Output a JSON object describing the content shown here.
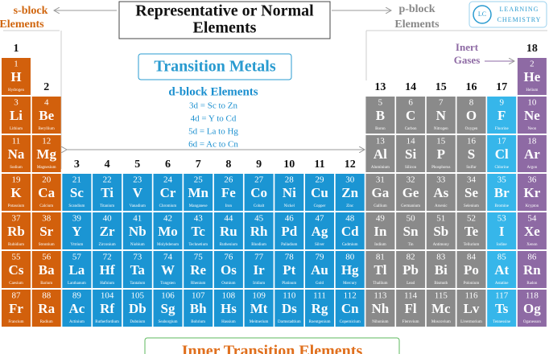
{
  "header": {
    "title_line1": "Representative or Normal",
    "title_line2": "Elements",
    "s_block_line1": "s-block",
    "s_block_line2": "Elements",
    "p_block_line1": "p-block",
    "p_block_line2": "Elements",
    "logo_mark": "LC",
    "logo_line1": "Learning",
    "logo_line2": "Chemistry"
  },
  "transition": {
    "title": "Transition Metals",
    "subtitle": "d-block Elements",
    "series": [
      "3d = Sc to Zn",
      "4d = Y to Cd",
      "5d = La to Hg",
      "6d = Ac to Cn"
    ]
  },
  "inert": {
    "line1": "Inert",
    "line2": "Gases"
  },
  "footer": {
    "title": "Inner Transition Elements"
  },
  "groups": [
    1,
    2,
    3,
    4,
    5,
    6,
    7,
    8,
    9,
    10,
    11,
    12,
    13,
    14,
    15,
    16,
    17,
    18
  ],
  "elements": [
    {
      "number": 1,
      "symbol": "H",
      "name": "Hydrogen"
    },
    {
      "number": 2,
      "symbol": "He",
      "name": "Helium"
    },
    {
      "number": 3,
      "symbol": "Li",
      "name": "Lithium"
    },
    {
      "number": 4,
      "symbol": "Be",
      "name": "Beryllium"
    },
    {
      "number": 5,
      "symbol": "B",
      "name": "Boron"
    },
    {
      "number": 6,
      "symbol": "C",
      "name": "Carbon"
    },
    {
      "number": 7,
      "symbol": "N",
      "name": "Nitrogen"
    },
    {
      "number": 8,
      "symbol": "O",
      "name": "Oxygen"
    },
    {
      "number": 9,
      "symbol": "F",
      "name": "Fluorine"
    },
    {
      "number": 10,
      "symbol": "Ne",
      "name": "Neon"
    },
    {
      "number": 11,
      "symbol": "Na",
      "name": "Sodium"
    },
    {
      "number": 12,
      "symbol": "Mg",
      "name": "Magnesium"
    },
    {
      "number": 13,
      "symbol": "Al",
      "name": "Aluminium"
    },
    {
      "number": 14,
      "symbol": "Si",
      "name": "Silicon"
    },
    {
      "number": 15,
      "symbol": "P",
      "name": "Phosphorus"
    },
    {
      "number": 16,
      "symbol": "S",
      "name": "Sulfur"
    },
    {
      "number": 17,
      "symbol": "Cl",
      "name": "Chlorine"
    },
    {
      "number": 18,
      "symbol": "Ar",
      "name": "Argon"
    },
    {
      "number": 19,
      "symbol": "K",
      "name": "Potassium"
    },
    {
      "number": 20,
      "symbol": "Ca",
      "name": "Calcium"
    },
    {
      "number": 21,
      "symbol": "Sc",
      "name": "Scandium"
    },
    {
      "number": 22,
      "symbol": "Ti",
      "name": "Titanium"
    },
    {
      "number": 23,
      "symbol": "V",
      "name": "Vanadium"
    },
    {
      "number": 24,
      "symbol": "Cr",
      "name": "Chromium"
    },
    {
      "number": 25,
      "symbol": "Mn",
      "name": "Manganese"
    },
    {
      "number": 26,
      "symbol": "Fe",
      "name": "Iron"
    },
    {
      "number": 27,
      "symbol": "Co",
      "name": "Cobalt"
    },
    {
      "number": 28,
      "symbol": "Ni",
      "name": "Nickel"
    },
    {
      "number": 29,
      "symbol": "Cu",
      "name": "Copper"
    },
    {
      "number": 30,
      "symbol": "Zn",
      "name": "Zinc"
    },
    {
      "number": 31,
      "symbol": "Ga",
      "name": "Gallium"
    },
    {
      "number": 32,
      "symbol": "Ge",
      "name": "Germanium"
    },
    {
      "number": 33,
      "symbol": "As",
      "name": "Arsenic"
    },
    {
      "number": 34,
      "symbol": "Se",
      "name": "Selenium"
    },
    {
      "number": 35,
      "symbol": "Br",
      "name": "Bromine"
    },
    {
      "number": 36,
      "symbol": "Kr",
      "name": "Krypton"
    },
    {
      "number": 37,
      "symbol": "Rb",
      "name": "Rubidium"
    },
    {
      "number": 38,
      "symbol": "Sr",
      "name": "Strontium"
    },
    {
      "number": 39,
      "symbol": "Y",
      "name": "Yttrium"
    },
    {
      "number": 40,
      "symbol": "Zr",
      "name": "Zirconium"
    },
    {
      "number": 41,
      "symbol": "Nb",
      "name": "Niobium"
    },
    {
      "number": 42,
      "symbol": "Mo",
      "name": "Molybdenum"
    },
    {
      "number": 43,
      "symbol": "Tc",
      "name": "Technetium"
    },
    {
      "number": 44,
      "symbol": "Ru",
      "name": "Ruthenium"
    },
    {
      "number": 45,
      "symbol": "Rh",
      "name": "Rhodium"
    },
    {
      "number": 46,
      "symbol": "Pd",
      "name": "Palladium"
    },
    {
      "number": 47,
      "symbol": "Ag",
      "name": "Silver"
    },
    {
      "number": 48,
      "symbol": "Cd",
      "name": "Cadmium"
    },
    {
      "number": 49,
      "symbol": "In",
      "name": "Indium"
    },
    {
      "number": 50,
      "symbol": "Sn",
      "name": "Tin"
    },
    {
      "number": 51,
      "symbol": "Sb",
      "name": "Antimony"
    },
    {
      "number": 52,
      "symbol": "Te",
      "name": "Tellurium"
    },
    {
      "number": 53,
      "symbol": "I",
      "name": "Iodine"
    },
    {
      "number": 54,
      "symbol": "Xe",
      "name": "Xenon"
    },
    {
      "number": 55,
      "symbol": "Cs",
      "name": "Caesium"
    },
    {
      "number": 56,
      "symbol": "Ba",
      "name": "Barium"
    },
    {
      "number": 57,
      "symbol": "La",
      "name": "Lanthanum"
    },
    {
      "number": 72,
      "symbol": "Hf",
      "name": "Hafnium"
    },
    {
      "number": 73,
      "symbol": "Ta",
      "name": "Tantalum"
    },
    {
      "number": 74,
      "symbol": "W",
      "name": "Tungsten"
    },
    {
      "number": 75,
      "symbol": "Re",
      "name": "Rhenium"
    },
    {
      "number": 76,
      "symbol": "Os",
      "name": "Osmium"
    },
    {
      "number": 77,
      "symbol": "Ir",
      "name": "Iridium"
    },
    {
      "number": 78,
      "symbol": "Pt",
      "name": "Platinum"
    },
    {
      "number": 79,
      "symbol": "Au",
      "name": "Gold"
    },
    {
      "number": 80,
      "symbol": "Hg",
      "name": "Mercury"
    },
    {
      "number": 81,
      "symbol": "Tl",
      "name": "Thallium"
    },
    {
      "number": 82,
      "symbol": "Pb",
      "name": "Lead"
    },
    {
      "number": 83,
      "symbol": "Bi",
      "name": "Bismuth"
    },
    {
      "number": 84,
      "symbol": "Po",
      "name": "Polonium"
    },
    {
      "number": 85,
      "symbol": "At",
      "name": "Astatine"
    },
    {
      "number": 86,
      "symbol": "Rn",
      "name": "Radon"
    },
    {
      "number": 87,
      "symbol": "Fr",
      "name": "Francium"
    },
    {
      "number": 88,
      "symbol": "Ra",
      "name": "Radium"
    },
    {
      "number": 89,
      "symbol": "Ac",
      "name": "Actinium"
    },
    {
      "number": 104,
      "symbol": "Rf",
      "name": "Rutherfordium"
    },
    {
      "number": 105,
      "symbol": "Db",
      "name": "Dubnium"
    },
    {
      "number": 106,
      "symbol": "Sg",
      "name": "Seaborgium"
    },
    {
      "number": 107,
      "symbol": "Bh",
      "name": "Bohrium"
    },
    {
      "number": 108,
      "symbol": "Hs",
      "name": "Hassium"
    },
    {
      "number": 109,
      "symbol": "Mt",
      "name": "Meitnerium"
    },
    {
      "number": 110,
      "symbol": "Ds",
      "name": "Darmstadtium"
    },
    {
      "number": 111,
      "symbol": "Rg",
      "name": "Roentgenium"
    },
    {
      "number": 112,
      "symbol": "Cn",
      "name": "Copernicium"
    },
    {
      "number": 113,
      "symbol": "Nh",
      "name": "Nihonium"
    },
    {
      "number": 114,
      "symbol": "Fl",
      "name": "Flerovium"
    },
    {
      "number": 115,
      "symbol": "Mc",
      "name": "Moscovium"
    },
    {
      "number": 116,
      "symbol": "Lv",
      "name": "Livermorium"
    },
    {
      "number": 117,
      "symbol": "Ts",
      "name": "Tennessine"
    },
    {
      "number": 118,
      "symbol": "Og",
      "name": "Oganesson"
    }
  ]
}
